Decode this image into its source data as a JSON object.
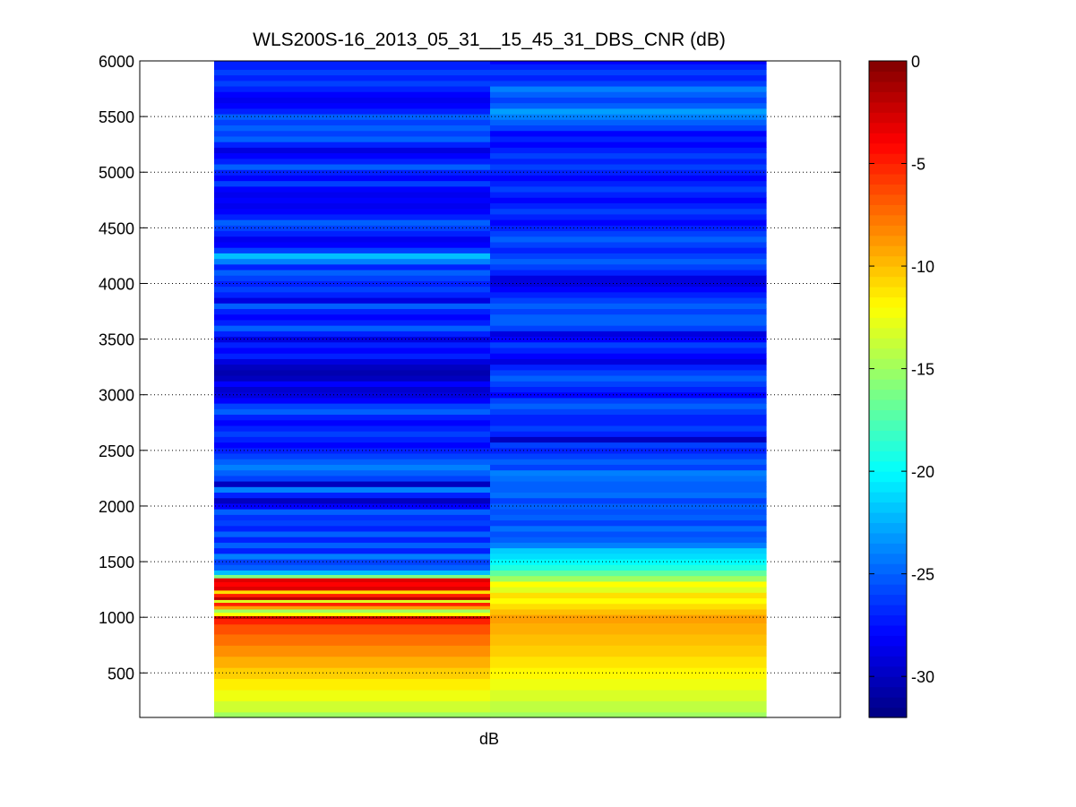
{
  "chart_data": {
    "type": "heatmap",
    "title": "WLS200S-16_2013_05_31__15_45_31_DBS_CNR (dB)",
    "xlabel": "dB",
    "ylabel": "",
    "ylim": [
      100,
      6000
    ],
    "yticks": [
      500,
      1000,
      1500,
      2000,
      2500,
      3000,
      3500,
      4000,
      4500,
      5000,
      5500,
      6000
    ],
    "grid": "horizontal dotted",
    "colormap": "jet",
    "colorbar": {
      "clim": [
        -32,
        0
      ],
      "ticks": [
        0,
        -5,
        -10,
        -15,
        -20,
        -25,
        -30
      ],
      "placement": "right"
    },
    "columns": [
      {
        "profile": [
          [
            100,
            -15
          ],
          [
            200,
            -13.5
          ],
          [
            300,
            -12.5
          ],
          [
            400,
            -11.5
          ],
          [
            500,
            -10.5
          ],
          [
            600,
            -9.5
          ],
          [
            700,
            -8.5
          ],
          [
            800,
            -7.5
          ],
          [
            900,
            -6.5
          ],
          [
            980,
            -5
          ],
          [
            1000,
            -2
          ],
          [
            1030,
            -12
          ],
          [
            1060,
            -15
          ],
          [
            1090,
            -9
          ],
          [
            1120,
            -5
          ],
          [
            1150,
            -13
          ],
          [
            1170,
            -2
          ],
          [
            1200,
            -5
          ],
          [
            1230,
            -11
          ],
          [
            1260,
            -3
          ],
          [
            1300,
            -4
          ],
          [
            1340,
            -3
          ],
          [
            1370,
            -16
          ],
          [
            1400,
            -22
          ],
          [
            1450,
            -25
          ],
          [
            1500,
            -26
          ],
          [
            1550,
            -24
          ],
          [
            1600,
            -27
          ],
          [
            1650,
            -25
          ],
          [
            1700,
            -27
          ],
          [
            1750,
            -25
          ],
          [
            1800,
            -27
          ],
          [
            1850,
            -26
          ],
          [
            1900,
            -26.5
          ],
          [
            1950,
            -25
          ],
          [
            2000,
            -28
          ],
          [
            2050,
            -30
          ],
          [
            2100,
            -27
          ],
          [
            2150,
            -24
          ],
          [
            2200,
            -30
          ],
          [
            2250,
            -26
          ],
          [
            2300,
            -25
          ],
          [
            2350,
            -24
          ],
          [
            2400,
            -25
          ],
          [
            2450,
            -26
          ],
          [
            2500,
            -27
          ],
          [
            2550,
            -28
          ],
          [
            2600,
            -27
          ],
          [
            2650,
            -26
          ],
          [
            2700,
            -27
          ],
          [
            2750,
            -28
          ],
          [
            2800,
            -27
          ],
          [
            2850,
            -25
          ],
          [
            2900,
            -26
          ],
          [
            2950,
            -28
          ],
          [
            3000,
            -29
          ],
          [
            3050,
            -29.5
          ],
          [
            3100,
            -28
          ],
          [
            3150,
            -30
          ],
          [
            3200,
            -30.5
          ],
          [
            3250,
            -30
          ],
          [
            3300,
            -29
          ],
          [
            3350,
            -27
          ],
          [
            3400,
            -28
          ],
          [
            3450,
            -27
          ],
          [
            3500,
            -29
          ],
          [
            3550,
            -27
          ],
          [
            3600,
            -25
          ],
          [
            3650,
            -27
          ],
          [
            3700,
            -28
          ],
          [
            3750,
            -27
          ],
          [
            3800,
            -25
          ],
          [
            3850,
            -29
          ],
          [
            3900,
            -27
          ],
          [
            3950,
            -26
          ],
          [
            4000,
            -27
          ],
          [
            4050,
            -26
          ],
          [
            4100,
            -25
          ],
          [
            4150,
            -27
          ],
          [
            4200,
            -24
          ],
          [
            4250,
            -22
          ],
          [
            4300,
            -26
          ],
          [
            4350,
            -28
          ],
          [
            4400,
            -28.5
          ],
          [
            4450,
            -27
          ],
          [
            4500,
            -26
          ],
          [
            4550,
            -25
          ],
          [
            4600,
            -27
          ],
          [
            4650,
            -28
          ],
          [
            4700,
            -28.5
          ],
          [
            4750,
            -28
          ],
          [
            4800,
            -28.5
          ],
          [
            4850,
            -28
          ],
          [
            4900,
            -26
          ],
          [
            4950,
            -28
          ],
          [
            5000,
            -27
          ],
          [
            5050,
            -25
          ],
          [
            5100,
            -27
          ],
          [
            5150,
            -28
          ],
          [
            5200,
            -29
          ],
          [
            5250,
            -27
          ],
          [
            5300,
            -25
          ],
          [
            5350,
            -26
          ],
          [
            5400,
            -25
          ],
          [
            5450,
            -26
          ],
          [
            5500,
            -25
          ],
          [
            5550,
            -27
          ],
          [
            5600,
            -28
          ],
          [
            5650,
            -28.5
          ],
          [
            5700,
            -28
          ],
          [
            5750,
            -27
          ],
          [
            5800,
            -26
          ],
          [
            5850,
            -27
          ],
          [
            5900,
            -26
          ],
          [
            5950,
            -27
          ],
          [
            6000,
            -27
          ]
        ]
      },
      {
        "profile": [
          [
            100,
            -15
          ],
          [
            200,
            -14
          ],
          [
            300,
            -13.2
          ],
          [
            400,
            -12.5
          ],
          [
            500,
            -11.8
          ],
          [
            600,
            -11.2
          ],
          [
            700,
            -10.5
          ],
          [
            800,
            -10
          ],
          [
            900,
            -9.5
          ],
          [
            1000,
            -9
          ],
          [
            1050,
            -10
          ],
          [
            1100,
            -11
          ],
          [
            1150,
            -12
          ],
          [
            1200,
            -11
          ],
          [
            1250,
            -13
          ],
          [
            1300,
            -12
          ],
          [
            1350,
            -15
          ],
          [
            1400,
            -17
          ],
          [
            1450,
            -19
          ],
          [
            1500,
            -20
          ],
          [
            1550,
            -21
          ],
          [
            1600,
            -21.5
          ],
          [
            1650,
            -24
          ],
          [
            1700,
            -25
          ],
          [
            1750,
            -25.5
          ],
          [
            1800,
            -24.5
          ],
          [
            1850,
            -26
          ],
          [
            1900,
            -25
          ],
          [
            1950,
            -25.5
          ],
          [
            2000,
            -25
          ],
          [
            2050,
            -26
          ],
          [
            2100,
            -24.5
          ],
          [
            2150,
            -25
          ],
          [
            2200,
            -25
          ],
          [
            2250,
            -24.5
          ],
          [
            2300,
            -24
          ],
          [
            2350,
            -26
          ],
          [
            2400,
            -25
          ],
          [
            2450,
            -26
          ],
          [
            2500,
            -27
          ],
          [
            2550,
            -26
          ],
          [
            2600,
            -30
          ],
          [
            2650,
            -27
          ],
          [
            2700,
            -26
          ],
          [
            2750,
            -27
          ],
          [
            2800,
            -27
          ],
          [
            2850,
            -26
          ],
          [
            2900,
            -25
          ],
          [
            2950,
            -26
          ],
          [
            3000,
            -28
          ],
          [
            3050,
            -27
          ],
          [
            3100,
            -26
          ],
          [
            3150,
            -25
          ],
          [
            3200,
            -26
          ],
          [
            3250,
            -27
          ],
          [
            3300,
            -29
          ],
          [
            3350,
            -28
          ],
          [
            3400,
            -27
          ],
          [
            3450,
            -26
          ],
          [
            3500,
            -28
          ],
          [
            3550,
            -29
          ],
          [
            3600,
            -26
          ],
          [
            3650,
            -25
          ],
          [
            3700,
            -25
          ],
          [
            3750,
            -26
          ],
          [
            3800,
            -25
          ],
          [
            3850,
            -26
          ],
          [
            3900,
            -27
          ],
          [
            3950,
            -28
          ],
          [
            4000,
            -29
          ],
          [
            4050,
            -29
          ],
          [
            4100,
            -27
          ],
          [
            4150,
            -26
          ],
          [
            4200,
            -25
          ],
          [
            4250,
            -26
          ],
          [
            4300,
            -27
          ],
          [
            4350,
            -26
          ],
          [
            4400,
            -25
          ],
          [
            4450,
            -26
          ],
          [
            4500,
            -27
          ],
          [
            4550,
            -28
          ],
          [
            4600,
            -27
          ],
          [
            4650,
            -26
          ],
          [
            4700,
            -27
          ],
          [
            4750,
            -28
          ],
          [
            4800,
            -27
          ],
          [
            4850,
            -26
          ],
          [
            4900,
            -27
          ],
          [
            4950,
            -28
          ],
          [
            5000,
            -27
          ],
          [
            5050,
            -26
          ],
          [
            5100,
            -27
          ],
          [
            5150,
            -26
          ],
          [
            5200,
            -27
          ],
          [
            5250,
            -28
          ],
          [
            5300,
            -27
          ],
          [
            5350,
            -28
          ],
          [
            5400,
            -26
          ],
          [
            5450,
            -25
          ],
          [
            5500,
            -24
          ],
          [
            5550,
            -23
          ],
          [
            5600,
            -25
          ],
          [
            5650,
            -26
          ],
          [
            5700,
            -25
          ],
          [
            5750,
            -24
          ],
          [
            5800,
            -26
          ],
          [
            5850,
            -27
          ],
          [
            5900,
            -26
          ],
          [
            5950,
            -27
          ],
          [
            6000,
            -28
          ]
        ]
      }
    ]
  }
}
